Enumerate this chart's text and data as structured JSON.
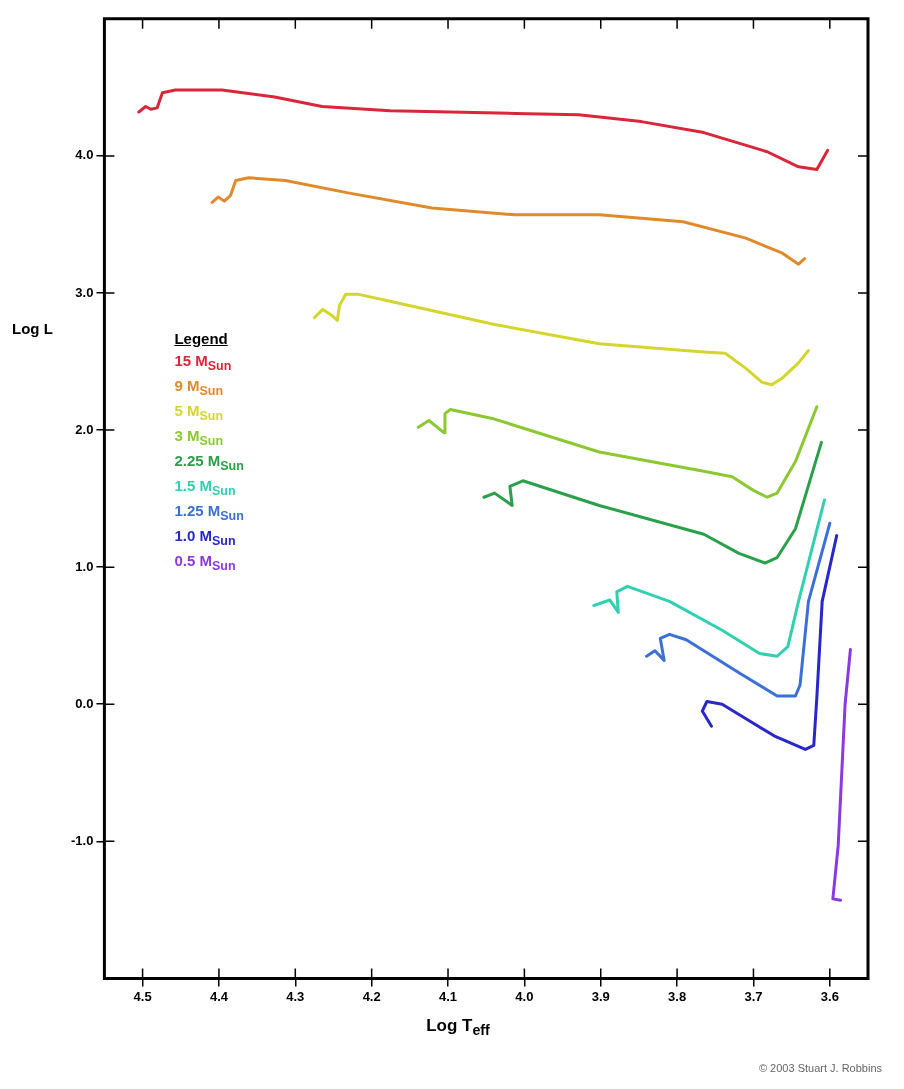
{
  "chart_data": {
    "type": "line",
    "xlabel": "Log T$_{eff}$",
    "ylabel": "Log L",
    "legend_title": "Legend",
    "legend": "left",
    "grid": false,
    "marker": "none",
    "line_style": "solid",
    "xlim": [
      4.55,
      3.55
    ],
    "xticks": [
      4.5,
      4.4,
      4.3,
      4.2,
      4.1,
      {
        "value": 4,
        "label": "4.0"
      },
      3.9,
      3.8,
      3.7,
      3.6
    ],
    "ylim": [
      -2,
      5
    ],
    "yticks": [
      {
        "value": -1,
        "label": "-1.0"
      },
      {
        "value": 0,
        "label": "0.0"
      },
      {
        "value": 1,
        "label": "1.0"
      },
      {
        "value": 2,
        "label": "2.0"
      },
      {
        "value": 3,
        "label": "3.0"
      },
      {
        "value": 4,
        "label": "4.0"
      }
    ],
    "annotations": [
      "© 2003 Stuart J. Robbins"
    ],
    "series": [
      {
        "name": "15 M$_{Sun}$",
        "color": "#d9263a",
        "x": [
          4.505,
          4.496,
          4.489,
          4.481,
          4.474,
          4.457,
          4.396,
          4.327,
          4.265,
          4.176,
          4.012,
          3.929,
          3.847,
          3.765,
          3.682,
          3.641,
          3.617,
          3.603
        ],
        "values": [
          4.32,
          4.36,
          4.34,
          4.35,
          4.46,
          4.48,
          4.48,
          4.43,
          4.36,
          4.33,
          4.31,
          4.3,
          4.25,
          4.17,
          4.03,
          3.92,
          3.9,
          4.04
        ]
      },
      {
        "name": "9 M$_{Sun}$",
        "color": "#e08a2c",
        "x": [
          4.409,
          4.401,
          4.393,
          4.385,
          4.378,
          4.361,
          4.313,
          4.231,
          4.121,
          4.012,
          3.902,
          3.792,
          3.71,
          3.662,
          3.641,
          3.633
        ],
        "values": [
          3.66,
          3.7,
          3.67,
          3.71,
          3.82,
          3.84,
          3.82,
          3.73,
          3.62,
          3.57,
          3.57,
          3.52,
          3.4,
          3.29,
          3.21,
          3.25
        ]
      },
      {
        "name": "5 M$_{Sun}$",
        "color": "#d4d62e",
        "x": [
          4.275,
          4.264,
          4.253,
          4.245,
          4.242,
          4.234,
          4.217,
          4.176,
          4.039,
          3.902,
          3.765,
          3.737,
          3.71,
          3.689,
          3.676,
          3.662,
          3.641,
          3.628
        ],
        "values": [
          2.82,
          2.88,
          2.84,
          2.8,
          2.91,
          2.99,
          2.99,
          2.94,
          2.77,
          2.63,
          2.57,
          2.56,
          2.45,
          2.35,
          2.33,
          2.38,
          2.49,
          2.58
        ]
      },
      {
        "name": "3 M$_{Sun}$",
        "color": "#8cc832",
        "x": [
          4.139,
          4.125,
          4.105,
          4.104,
          4.097,
          4.039,
          3.902,
          3.765,
          3.728,
          3.7,
          3.682,
          3.669,
          3.645,
          3.617
        ],
        "values": [
          2.02,
          2.07,
          1.98,
          2.12,
          2.15,
          2.08,
          1.84,
          1.7,
          1.66,
          1.56,
          1.51,
          1.54,
          1.77,
          2.17
        ]
      },
      {
        "name": "2.25 M$_{Sun}$",
        "color": "#2aa04a",
        "x": [
          4.053,
          4.039,
          4.016,
          4.019,
          4.002,
          3.902,
          3.765,
          3.719,
          3.685,
          3.669,
          3.645,
          3.611
        ],
        "values": [
          1.51,
          1.54,
          1.45,
          1.59,
          1.63,
          1.45,
          1.24,
          1.1,
          1.03,
          1.07,
          1.28,
          1.91
        ]
      },
      {
        "name": "1.5 M$_{Sun}$",
        "color": "#30d0b0",
        "x": [
          3.909,
          3.888,
          3.877,
          3.879,
          3.865,
          3.81,
          3.741,
          3.692,
          3.669,
          3.655,
          3.641,
          3.607
        ],
        "values": [
          0.72,
          0.76,
          0.67,
          0.82,
          0.86,
          0.75,
          0.54,
          0.37,
          0.35,
          0.42,
          0.75,
          1.49
        ]
      },
      {
        "name": "1.25 M$_{Sun}$",
        "color": "#3a70d8",
        "x": [
          3.84,
          3.829,
          3.817,
          3.822,
          3.81,
          3.788,
          3.719,
          3.669,
          3.645,
          3.639,
          3.628,
          3.6
        ],
        "values": [
          0.35,
          0.39,
          0.32,
          0.48,
          0.51,
          0.47,
          0.23,
          0.06,
          0.06,
          0.14,
          0.75,
          1.32
        ]
      },
      {
        "name": "1.0 M$_{Sun}$",
        "color": "#2828c8",
        "x": [
          3.755,
          3.767,
          3.761,
          3.741,
          3.673,
          3.632,
          3.621,
          3.617,
          3.61,
          3.591
        ],
        "values": [
          -0.16,
          -0.05,
          0.02,
          0.0,
          -0.23,
          -0.33,
          -0.3,
          0.05,
          0.75,
          1.23
        ]
      },
      {
        "name": "0.5 M$_{Sun}$",
        "color": "#8a3ae0",
        "x": [
          3.586,
          3.596,
          3.589,
          3.58,
          3.573
        ],
        "values": [
          -1.43,
          -1.42,
          -1.03,
          0.0,
          0.4
        ]
      }
    ]
  }
}
